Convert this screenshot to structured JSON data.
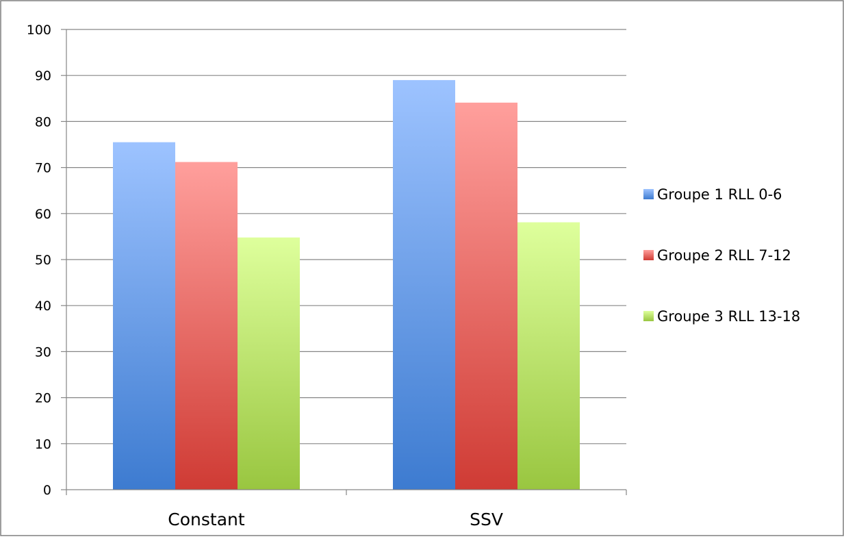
{
  "chart_data": {
    "type": "bar",
    "title": "",
    "xlabel": "",
    "ylabel": "",
    "categories": [
      "Constant",
      "SSV"
    ],
    "series": [
      {
        "name": "Groupe 1 RLL 0-6",
        "values": [
          75.5,
          89
        ],
        "color_top": "#9dc3ff",
        "color_bottom": "#3d7bd0"
      },
      {
        "name": "Groupe 2 RLL 7-12",
        "values": [
          71.2,
          84.1
        ],
        "color_top": "#ff9f9c",
        "color_bottom": "#cf3b34"
      },
      {
        "name": "Groupe 3 RLL 13-18",
        "values": [
          54.8,
          58.1
        ],
        "color_top": "#deff9c",
        "color_bottom": "#99c640"
      }
    ],
    "ylim": [
      0,
      100
    ],
    "yticks": [
      0,
      10,
      20,
      30,
      40,
      50,
      60,
      70,
      80,
      90,
      100
    ],
    "grid": true,
    "legend_position": "right"
  }
}
